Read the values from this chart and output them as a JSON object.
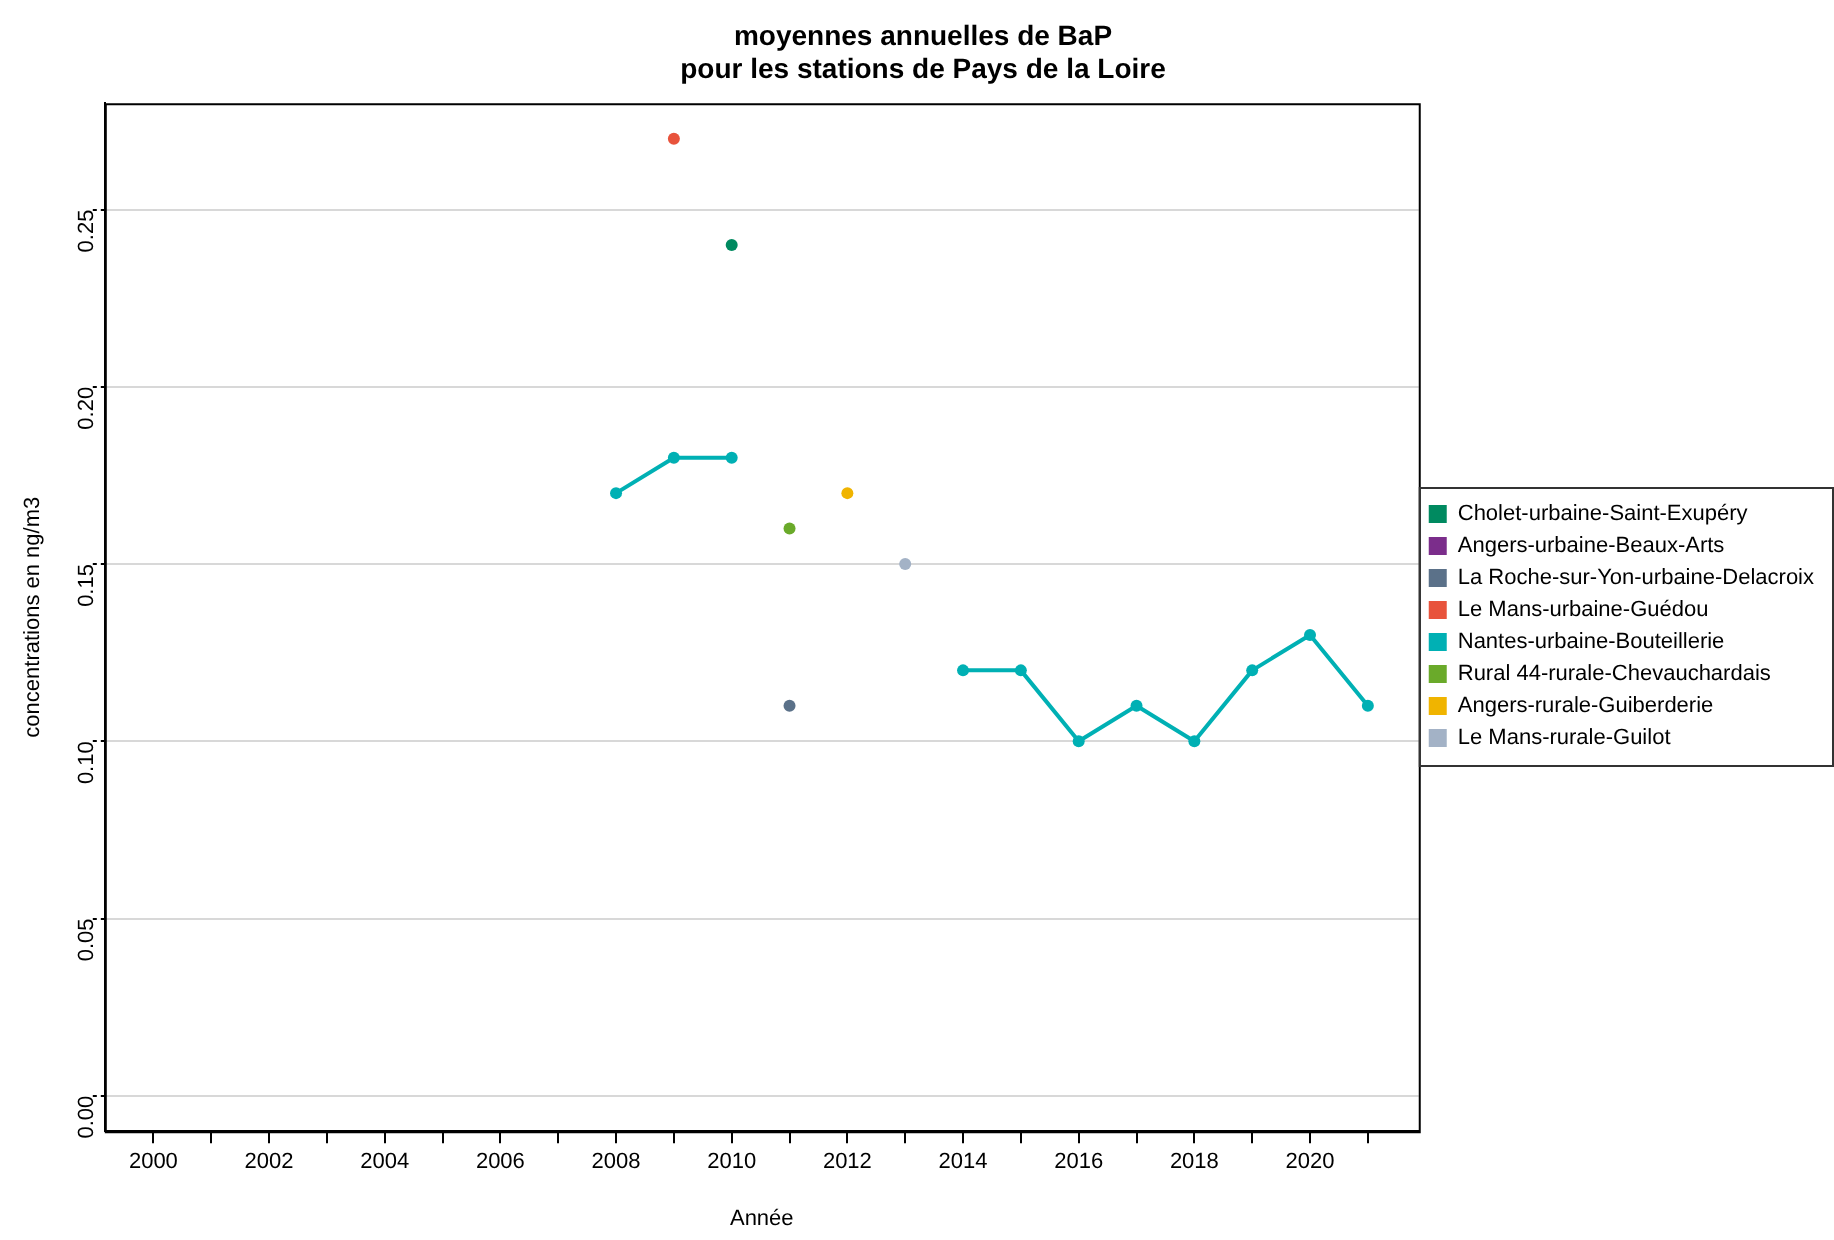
{
  "chart_data": {
    "type": "line",
    "title": "moyennes annuelles de BaP\npour les stations de Pays de la Loire",
    "xlabel": "Année",
    "ylabel": "concentrations en ng/m3",
    "x": [
      2008,
      2009,
      2010,
      2011,
      2012,
      2013,
      2014,
      2015,
      2016,
      2017,
      2018,
      2019,
      2020,
      2021
    ],
    "series": [
      {
        "name": "Cholet-urbaine-Saint-Exupéry",
        "color": "#008a60",
        "values": [
          null,
          null,
          0.24,
          null,
          null,
          null,
          null,
          null,
          null,
          null,
          null,
          null,
          null,
          null
        ]
      },
      {
        "name": "Angers-urbaine-Beaux-Arts",
        "color": "#7b2d8b",
        "values": [
          null,
          null,
          null,
          null,
          null,
          null,
          null,
          null,
          null,
          null,
          null,
          null,
          null,
          null
        ]
      },
      {
        "name": "La Roche-sur-Yon-urbaine-Delacroix",
        "color": "#5b7189",
        "values": [
          null,
          null,
          null,
          0.11,
          null,
          null,
          null,
          null,
          null,
          null,
          null,
          null,
          null,
          null
        ]
      },
      {
        "name": "Le Mans-urbaine-Guédou",
        "color": "#e8533c",
        "values": [
          null,
          0.27,
          null,
          null,
          null,
          null,
          null,
          null,
          null,
          null,
          null,
          null,
          null,
          null
        ]
      },
      {
        "name": "Nantes-urbaine-Bouteillerie",
        "color": "#00b0b4",
        "values": [
          0.17,
          0.18,
          0.18,
          null,
          null,
          null,
          0.12,
          0.12,
          0.1,
          0.11,
          0.1,
          0.12,
          0.13,
          0.11
        ]
      },
      {
        "name": "Rural 44-rurale-Chevauchardais",
        "color": "#6aaa2a",
        "values": [
          null,
          null,
          null,
          0.16,
          null,
          null,
          null,
          null,
          null,
          null,
          null,
          null,
          null,
          null
        ]
      },
      {
        "name": "Angers-rurale-Guiberderie",
        "color": "#f0b400",
        "values": [
          null,
          null,
          null,
          null,
          0.17,
          null,
          null,
          null,
          null,
          null,
          null,
          null,
          null,
          null
        ]
      },
      {
        "name": "Le Mans-rurale-Guilot",
        "color": "#a3b2c6",
        "values": [
          null,
          null,
          null,
          null,
          null,
          0.15,
          null,
          null,
          null,
          null,
          null,
          null,
          null,
          null
        ]
      }
    ],
    "xlim": [
      1999.16,
      2021.88
    ],
    "xticks": [
      2000,
      {
        "value": 2001,
        "label": null
      },
      2002,
      {
        "value": 2003,
        "label": null
      },
      2004,
      {
        "value": 2005,
        "label": null
      },
      2006,
      {
        "value": 2007,
        "label": null
      },
      2008,
      {
        "value": 2009,
        "label": null
      },
      2010,
      {
        "value": 2011,
        "label": null
      },
      2012,
      {
        "value": 2013,
        "label": null
      },
      2014,
      {
        "value": 2015,
        "label": null
      },
      2016,
      {
        "value": 2017,
        "label": null
      },
      2018,
      {
        "value": 2019,
        "label": null
      },
      2020,
      {
        "value": 2021,
        "label": null
      }
    ],
    "ylim": [
      -0.01,
      0.28
    ],
    "yticks": [
      {
        "value": 0,
        "label": "0.00"
      },
      {
        "value": 0.05,
        "label": "0.05"
      },
      {
        "value": 0.1,
        "label": "0.10"
      },
      {
        "value": 0.15,
        "label": "0.15"
      },
      {
        "value": 0.2,
        "label": "0.20"
      },
      {
        "value": 0.25,
        "label": "0.25"
      }
    ],
    "grid": "y",
    "legend": "right",
    "marker": "circle",
    "line_style": "solid"
  }
}
